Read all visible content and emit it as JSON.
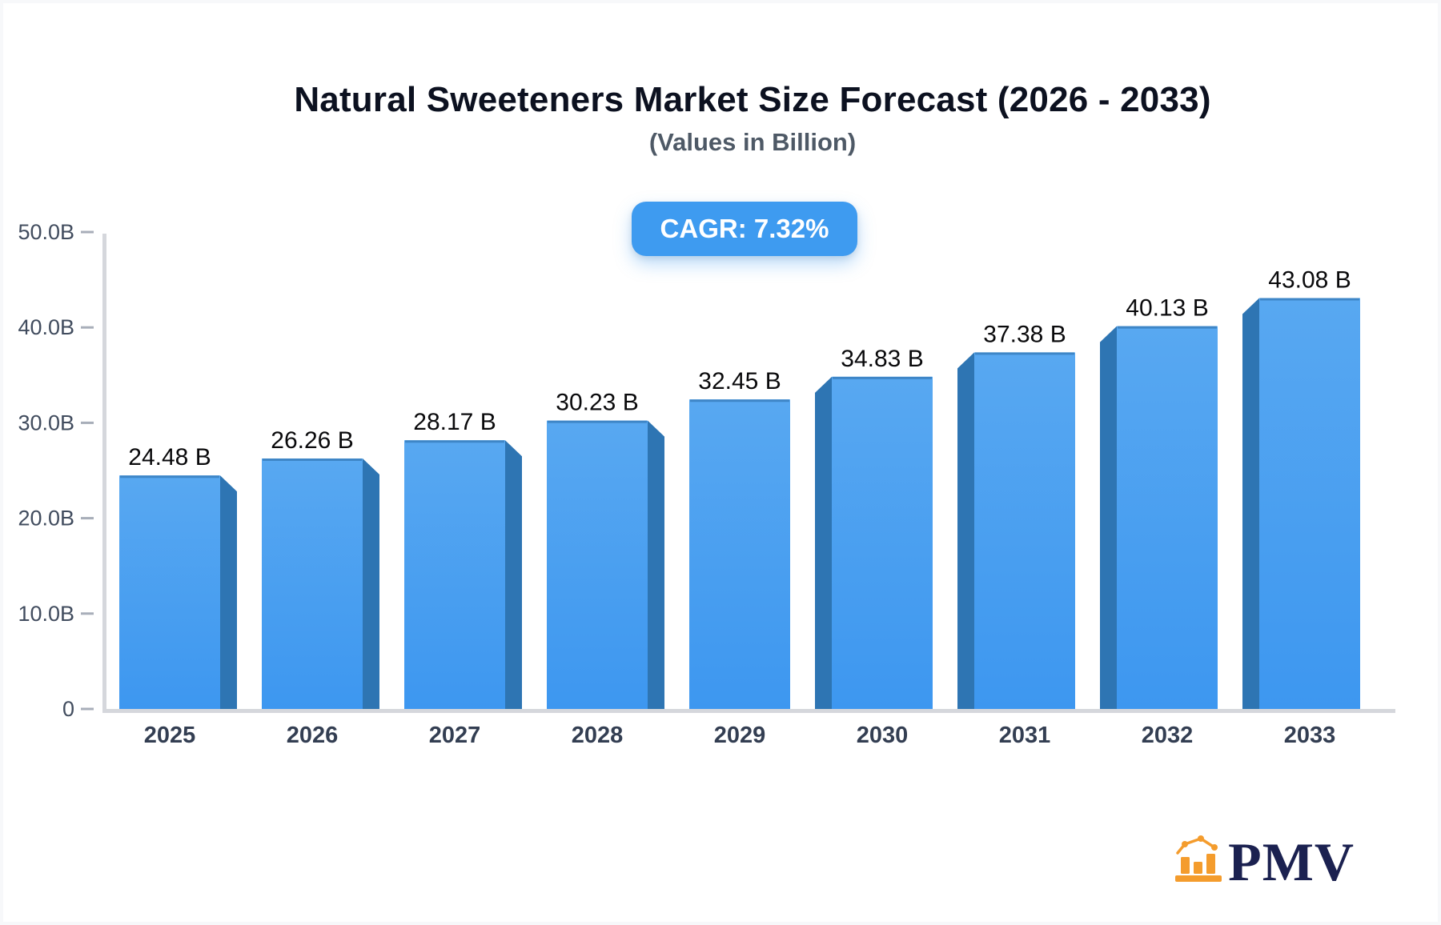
{
  "header": {
    "title": "Natural Sweeteners Market Size Forecast (2026 - 2033)",
    "subtitle": "(Values in Billion)",
    "cagr_badge": "CAGR: 7.32%"
  },
  "chart_data": {
    "type": "bar",
    "style": "3d-bars",
    "title": "Natural Sweeteners Market Size Forecast (2026 - 2033)",
    "subtitle": "(Values in Billion)",
    "categories": [
      "2025",
      "2026",
      "2027",
      "2028",
      "2029",
      "2030",
      "2031",
      "2032",
      "2033"
    ],
    "values": [
      24.48,
      26.26,
      28.17,
      30.23,
      32.45,
      34.83,
      37.38,
      40.13,
      43.08
    ],
    "value_labels": [
      "24.48 B",
      "26.26 B",
      "28.17 B",
      "30.23 B",
      "32.45 B",
      "34.83 B",
      "37.38 B",
      "40.13 B",
      "43.08 B"
    ],
    "y_tick_labels": [
      "0",
      "10.0B",
      "20.0B",
      "30.0B",
      "40.0B",
      "50.0B"
    ],
    "ylim": [
      0,
      50
    ],
    "xlabel": "",
    "ylabel": "",
    "grid": false,
    "legend": false,
    "annotation": "CAGR: 7.32%"
  },
  "colors": {
    "bar_face_top": "#58a8f1",
    "bar_face_bottom": "#3d97f0",
    "bar_face_edge": "#3e86c7",
    "bar_side": "#2e75b3",
    "badge_bg": "#3e9bf0",
    "badge_text": "#ffffff",
    "axis_line": "#d5d7dc",
    "tick_mark": "#a8aeb9",
    "y_tick_text": "#414c5e",
    "x_tick_text": "#333e52",
    "value_text": "#0a0a0c",
    "title_text": "#0c1120",
    "subtitle_text": "#4e5966",
    "logo_orange": "#f49c2d",
    "logo_navy": "#1b2150"
  },
  "logo": {
    "text": "PMV",
    "icon": "bar-chart-icon"
  }
}
